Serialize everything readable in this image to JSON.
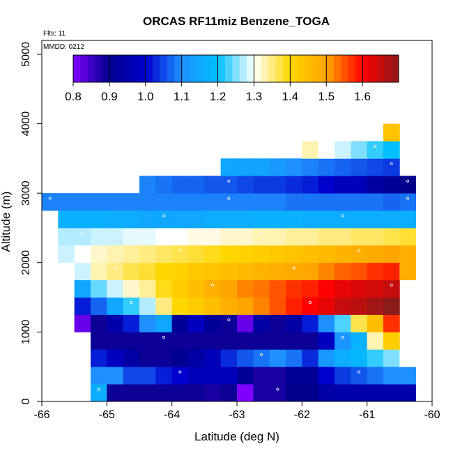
{
  "chart_data": {
    "type": "heatmap",
    "title": "ORCAS RF11miz Benzene_TOGA",
    "annotations": [
      "Flts: 11",
      "MMDD: 0212"
    ],
    "xlabel": "Latitude (deg N)",
    "ylabel": "Altitude (m)",
    "xlim": [
      -66,
      -60
    ],
    "ylim": [
      0,
      5200
    ],
    "x_ticks": [
      -66,
      -65,
      -64,
      -63,
      -62,
      -61,
      -60
    ],
    "y_ticks": [
      0,
      1000,
      2000,
      3000,
      4000,
      5000
    ],
    "x_tick_labels": [
      "-66",
      "-65",
      "-64",
      "-63",
      "-62",
      "-61",
      "-60"
    ],
    "y_tick_labels": [
      "0",
      "1000",
      "2000",
      "3000",
      "4000",
      "5000"
    ],
    "cell_width_deg": 0.25,
    "cell_height_m": 250,
    "colorbar": {
      "range": [
        0.8,
        1.7
      ],
      "ticks": [
        0.8,
        0.9,
        1.0,
        1.1,
        1.2,
        1.3,
        1.4,
        1.5,
        1.6
      ],
      "tick_labels": [
        "0.8",
        "0.9",
        "1.0",
        "1.1",
        "1.2",
        "1.3",
        "1.4",
        "1.5",
        "1.6"
      ],
      "stops": [
        "#7f00ff",
        "#00008b",
        "#0000cd",
        "#1e90ff",
        "#00bfff",
        "#ffffff",
        "#ffd700",
        "#ffa500",
        "#ff0000",
        "#8b1a1a"
      ]
    },
    "rows": [
      {
        "alt": 0,
        "start_lat": -65.25,
        "values": [
          1.16,
          0.89,
          0.89,
          0.89,
          0.89,
          0.89,
          0.89,
          0.88,
          0.89,
          0.8,
          0.88,
          0.88,
          0.9,
          0.9,
          0.94,
          0.95,
          0.95,
          0.95,
          0.95,
          0.95
        ]
      },
      {
        "alt": 250,
        "start_lat": -65.25,
        "values": [
          1.1,
          1.1,
          1.05,
          1.05,
          1.02,
          1.0,
          0.97,
          0.97,
          0.97,
          0.92,
          0.88,
          0.88,
          0.92,
          0.92,
          1.0,
          1.04,
          1.06,
          1.08,
          1.1,
          1.1
        ]
      },
      {
        "alt": 500,
        "start_lat": -65.25,
        "values": [
          1.02,
          0.98,
          0.94,
          0.89,
          0.89,
          0.91,
          0.94,
          0.97,
          1.03,
          1.06,
          1.08,
          1.1,
          1.08,
          1.03,
          1.12,
          1.16,
          1.18,
          1.22,
          1.25,
          1.3
        ]
      },
      {
        "alt": 750,
        "start_lat": -65.25,
        "values": [
          0.89,
          0.89,
          0.89,
          0.89,
          0.89,
          0.89,
          0.89,
          0.89,
          0.89,
          0.89,
          0.89,
          0.89,
          0.89,
          0.89,
          0.98,
          1.11,
          1.17,
          1.33,
          1.42
        ]
      },
      {
        "alt": 1000,
        "start_lat": -65.5,
        "values": [
          0.82,
          0.89,
          0.95,
          1.02,
          1.1,
          1.15,
          0.92,
          0.98,
          0.92,
          0.89,
          0.82,
          0.94,
          0.89,
          0.94,
          1.02,
          1.1,
          1.23,
          1.37,
          1.45,
          1.57
        ]
      },
      {
        "alt": 1250,
        "start_lat": -65.5,
        "values": [
          1.02,
          1.07,
          1.15,
          1.22,
          1.27,
          1.35,
          1.4,
          1.42,
          1.45,
          1.48,
          1.5,
          1.52,
          1.55,
          1.58,
          1.6,
          1.62,
          1.65,
          1.66,
          1.68,
          1.7
        ]
      },
      {
        "alt": 1500,
        "start_lat": -65.5,
        "values": [
          1.15,
          1.24,
          1.28,
          1.32,
          1.34,
          1.39,
          1.42,
          1.45,
          1.48,
          1.5,
          1.52,
          1.53,
          1.55,
          1.57,
          1.58,
          1.6,
          1.62,
          1.63,
          1.64,
          1.65
        ]
      },
      {
        "alt": 1750,
        "start_lat": -65.5,
        "values": [
          1.28,
          1.33,
          1.35,
          1.37,
          1.38,
          1.4,
          1.41,
          1.43,
          1.44,
          1.45,
          1.46,
          1.47,
          1.48,
          1.49,
          1.5,
          1.52,
          1.54,
          1.55,
          1.57,
          1.58,
          1.48
        ]
      },
      {
        "alt": 2000,
        "start_lat": -65.75,
        "values": [
          1.28,
          1.3,
          1.32,
          1.33,
          1.34,
          1.35,
          1.36,
          1.37,
          1.38,
          1.39,
          1.4,
          1.41,
          1.42,
          1.43,
          1.44,
          1.45,
          1.46,
          1.47,
          1.48,
          1.49,
          1.5,
          1.48
        ]
      },
      {
        "alt": 2250,
        "start_lat": -65.75,
        "values": [
          1.27,
          1.27,
          1.28,
          1.28,
          1.29,
          1.29,
          1.3,
          1.3,
          1.31,
          1.31,
          1.32,
          1.32,
          1.33,
          1.33,
          1.34,
          1.34,
          1.35,
          1.35,
          1.36,
          1.36,
          1.37,
          1.38
        ]
      },
      {
        "alt": 2500,
        "start_lat": -65.75,
        "values": [
          1.17,
          1.17,
          1.17,
          1.16,
          1.16,
          1.15,
          1.15,
          1.15,
          1.15,
          1.16,
          1.16,
          1.16,
          1.17,
          1.17,
          1.17,
          1.16,
          1.16,
          1.16,
          1.16,
          1.16,
          1.16,
          1.16
        ]
      },
      {
        "alt": 2750,
        "start_lat": -66.0,
        "values": [
          1.09,
          1.09,
          1.09,
          1.09,
          1.09,
          1.09,
          1.09,
          1.09,
          1.09,
          1.09,
          1.09,
          1.09,
          1.09,
          1.09,
          1.09,
          1.08,
          1.08,
          1.08,
          1.08,
          1.08,
          1.08,
          1.07,
          1.08
        ]
      },
      {
        "alt": 3000,
        "start_lat": -64.5,
        "values": [
          1.09,
          1.08,
          1.07,
          1.07,
          1.06,
          1.06,
          1.05,
          1.04,
          1.04,
          1.03,
          1.02,
          1.0,
          0.97,
          0.97,
          0.93,
          0.92,
          0.9
        ]
      },
      {
        "alt": 3250,
        "start_lat": -63.25,
        "values": [
          1.15,
          1.14,
          1.14,
          1.12,
          1.1,
          1.09,
          1.08,
          1.07,
          1.06,
          1.05,
          1.04
        ]
      },
      {
        "alt": 3500,
        "start_lat": -62.0,
        "values": [
          1.33,
          1.3,
          1.28,
          1.25,
          1.22,
          1.2
        ]
      },
      {
        "alt": 3750,
        "start_lat": -60.75,
        "values": [
          1.44
        ]
      }
    ]
  }
}
